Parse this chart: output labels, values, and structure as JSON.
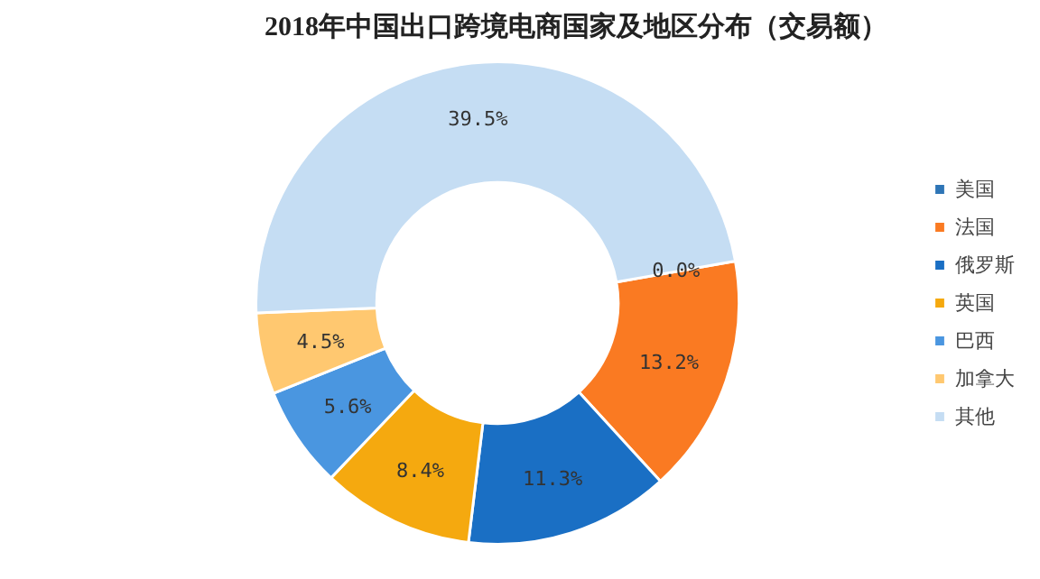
{
  "chart_data": {
    "type": "donut",
    "title": "2018年中国出口跨境电商国家及地区分布（交易额）",
    "categories": [
      "美国",
      "法国",
      "俄罗斯",
      "英国",
      "巴西",
      "加拿大",
      "其他"
    ],
    "values": [
      0.0,
      13.2,
      11.3,
      8.4,
      5.6,
      4.5,
      39.5
    ],
    "value_labels": [
      "0.0%",
      "13.2%",
      "11.3%",
      "8.4%",
      "5.6%",
      "4.5%",
      "39.5%"
    ],
    "colors": [
      "#2e75b6",
      "#fa7a22",
      "#1a6fc4",
      "#f5a90f",
      "#4a96e0",
      "#ffc870",
      "#c5ddf3"
    ],
    "legend": "right"
  }
}
